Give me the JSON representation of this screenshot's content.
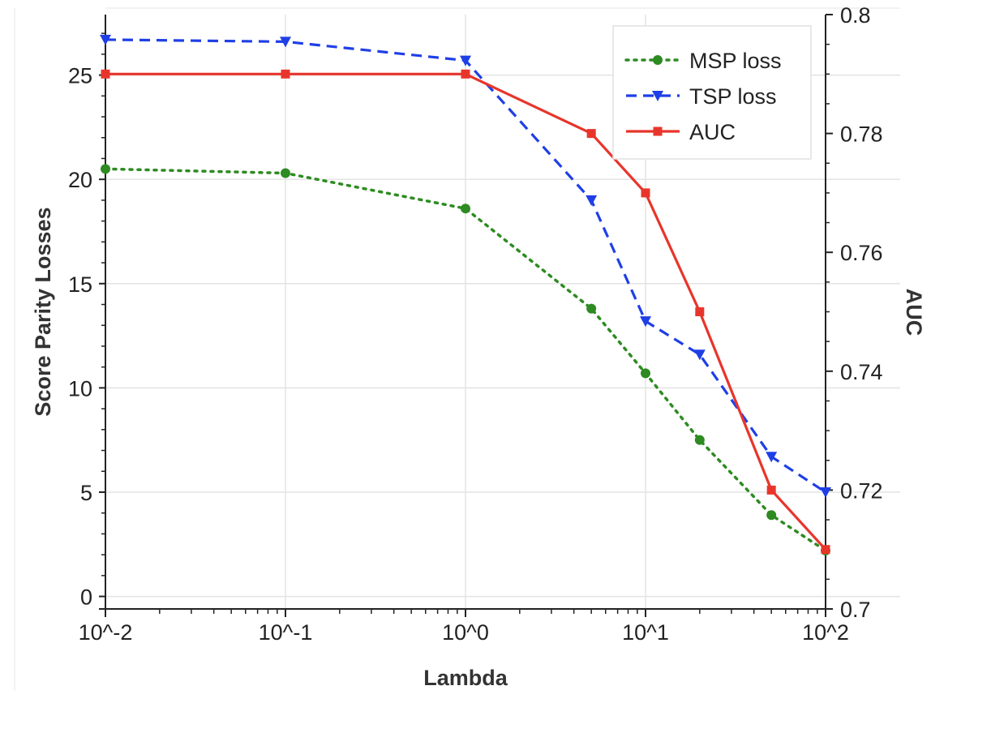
{
  "chart_data": {
    "type": "line",
    "xlabel": "Lambda",
    "ylabel_left": "Score Parity Losses",
    "ylabel_right": "AUC",
    "x_scale": "log",
    "x_ticks": [
      0.01,
      0.1,
      1,
      10,
      100
    ],
    "x_tick_labels": [
      "10^-2",
      "10^-1",
      "10^0",
      "10^1",
      "10^2"
    ],
    "xlim": [
      0.01,
      100
    ],
    "ylim_left": [
      -0.6,
      27.9
    ],
    "y_ticks_left": [
      0,
      5,
      10,
      15,
      20,
      25
    ],
    "y_tick_labels_left": [
      "0",
      "5",
      "10",
      "15",
      "20",
      "25"
    ],
    "ylim_right": [
      0.7,
      0.8
    ],
    "y_ticks_right": [
      0.7,
      0.72,
      0.74,
      0.76,
      0.78,
      0.8
    ],
    "y_tick_labels_right": [
      "0.7",
      "0.72",
      "0.74",
      "0.76",
      "0.78",
      "0.8"
    ],
    "grid": true,
    "legend_position": "top-right",
    "series": [
      {
        "name": "MSP loss",
        "axis": "left",
        "color": "#2e8b22",
        "line_style": "dotted",
        "marker": "circle",
        "x": [
          0.01,
          0.1,
          1,
          5,
          10,
          20,
          50,
          100
        ],
        "y": [
          20.5,
          20.3,
          18.6,
          13.8,
          10.7,
          7.5,
          3.9,
          2.2
        ]
      },
      {
        "name": "TSP loss",
        "axis": "left",
        "color": "#1f3fe6",
        "line_style": "dashed",
        "marker": "triangle-down",
        "x": [
          0.01,
          0.1,
          1,
          5,
          10,
          20,
          50,
          100
        ],
        "y": [
          26.7,
          26.6,
          25.7,
          19.0,
          13.2,
          11.6,
          6.7,
          5.0
        ]
      },
      {
        "name": "AUC",
        "axis": "right",
        "color": "#e8352b",
        "line_style": "solid",
        "marker": "square",
        "x": [
          0.01,
          0.1,
          1,
          5,
          10,
          20,
          50,
          100
        ],
        "y": [
          0.79,
          0.79,
          0.79,
          0.78,
          0.77,
          0.75,
          0.72,
          0.71
        ]
      }
    ]
  }
}
